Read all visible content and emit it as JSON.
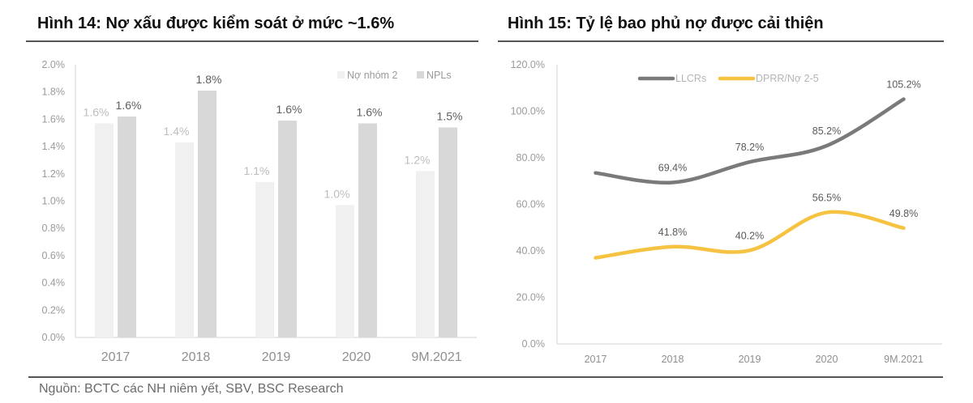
{
  "left": {
    "title": "Hình 14: Nợ xấu được kiểm soát ở mức ~1.6%"
  },
  "right": {
    "title": "Hình 15: Tỷ lệ bao phủ nợ được cải thiện"
  },
  "source": "Nguồn: BCTC các NH niêm yết, SBV, BSC Research",
  "chart_data": [
    {
      "type": "bar",
      "title": "Hình 14: Nợ xấu được kiểm soát ở mức ~1.6%",
      "xlabel": "",
      "ylabel": "",
      "categories": [
        "2017",
        "2018",
        "2019",
        "2020",
        "9M.2021"
      ],
      "series": [
        {
          "name": "Nợ nhóm 2",
          "color": "#f0f0f0",
          "label_color": "#bdbdbd",
          "values": [
            1.57,
            1.43,
            1.14,
            0.97,
            1.22
          ],
          "labels": [
            "1.6%",
            "1.4%",
            "1.1%",
            "1.0%",
            "1.2%"
          ]
        },
        {
          "name": "NPLs",
          "color": "#d8d8d8",
          "label_color": "#5f5f5f",
          "values": [
            1.62,
            1.81,
            1.59,
            1.57,
            1.54
          ],
          "labels": [
            "1.6%",
            "1.8%",
            "1.6%",
            "1.6%",
            "1.5%"
          ]
        }
      ],
      "ylim": [
        0,
        2.0
      ],
      "yticks": [
        "0.0%",
        "0.2%",
        "0.4%",
        "0.6%",
        "0.8%",
        "1.0%",
        "1.2%",
        "1.4%",
        "1.6%",
        "1.8%",
        "2.0%"
      ],
      "grid": false,
      "legend": "top-right"
    },
    {
      "type": "line",
      "title": "Hình 15: Tỷ lệ bao phủ nợ được cải thiện",
      "xlabel": "",
      "ylabel": "",
      "categories": [
        "2017",
        "2018",
        "2019",
        "2020",
        "9M.2021"
      ],
      "series": [
        {
          "name": "LLCRs",
          "color": "#7a7a7a",
          "values": [
            73.5,
            69.4,
            78.2,
            85.2,
            105.2
          ],
          "labels": [
            null,
            "69.4%",
            "78.2%",
            "85.2%",
            "105.2%"
          ]
        },
        {
          "name": "DPRR/Nợ 2-5",
          "color": "#f5c242",
          "values": [
            37.0,
            41.8,
            40.2,
            56.5,
            49.8
          ],
          "labels": [
            null,
            "41.8%",
            "40.2%",
            "56.5%",
            "49.8%"
          ]
        }
      ],
      "ylim": [
        0,
        120
      ],
      "yticks": [
        "0.0%",
        "20.0%",
        "40.0%",
        "60.0%",
        "80.0%",
        "100.0%",
        "120.0%"
      ],
      "grid": false,
      "legend": "top"
    }
  ]
}
